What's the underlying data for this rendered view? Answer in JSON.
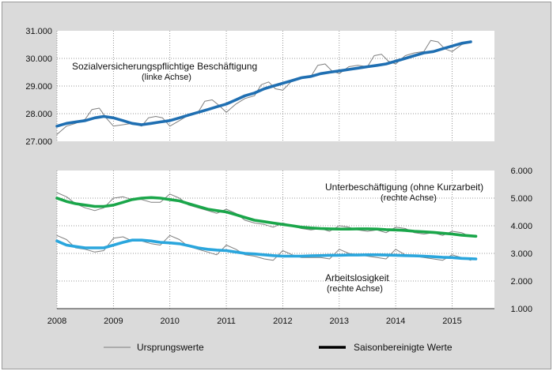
{
  "colors": {
    "background": "#dadada",
    "plot": "#ffffff",
    "grid": "#7a7a7a",
    "raw": "#7f7f7f",
    "employment": "#1f6fb2",
    "underemployment": "#1aa64a",
    "unemployment": "#2aa6dd"
  },
  "chart_data": [
    {
      "type": "line",
      "panel": "top",
      "y_axis": "left",
      "ylim": [
        27000,
        31000
      ],
      "yticks": [
        "27.000",
        "28.000",
        "29.000",
        "30.000",
        "31.000"
      ],
      "xlim": [
        2008,
        2015.75
      ],
      "x_ticks": [
        "2008",
        "2009",
        "2010",
        "2011",
        "2012",
        "2013",
        "2014",
        "2015"
      ],
      "annotation": {
        "title": "Sozialversicherungspflichtige Beschäftigung",
        "sub": "(linke Achse)"
      },
      "series": [
        {
          "name": "Ursprungswerte",
          "style": "raw",
          "x": [
            2008.0,
            2008.17,
            2008.33,
            2008.5,
            2008.62,
            2008.75,
            2008.87,
            2009.0,
            2009.17,
            2009.33,
            2009.5,
            2009.62,
            2009.75,
            2009.87,
            2010.0,
            2010.17,
            2010.33,
            2010.5,
            2010.62,
            2010.75,
            2010.87,
            2011.0,
            2011.17,
            2011.33,
            2011.5,
            2011.62,
            2011.75,
            2011.87,
            2012.0,
            2012.17,
            2012.33,
            2012.5,
            2012.62,
            2012.75,
            2012.87,
            2013.0,
            2013.17,
            2013.33,
            2013.5,
            2013.62,
            2013.75,
            2013.87,
            2014.0,
            2014.17,
            2014.33,
            2014.5,
            2014.62,
            2014.75,
            2014.87,
            2015.0,
            2015.17,
            2015.33
          ],
          "values": [
            27250,
            27550,
            27650,
            27800,
            28150,
            28200,
            27850,
            27550,
            27600,
            27650,
            27550,
            27850,
            27900,
            27850,
            27550,
            27750,
            27950,
            28050,
            28450,
            28500,
            28300,
            28050,
            28350,
            28550,
            28650,
            29050,
            29150,
            28900,
            28850,
            29200,
            29300,
            29350,
            29750,
            29800,
            29550,
            29450,
            29700,
            29750,
            29700,
            30100,
            30150,
            29900,
            29800,
            30100,
            30200,
            30250,
            30650,
            30600,
            30350,
            30250,
            30500,
            30600
          ]
        },
        {
          "name": "Saisonbereinigte Werte",
          "style": "sa",
          "color_key": "employment",
          "x": [
            2008.0,
            2008.17,
            2008.33,
            2008.5,
            2008.67,
            2008.83,
            2009.0,
            2009.17,
            2009.33,
            2009.5,
            2009.67,
            2009.83,
            2010.0,
            2010.17,
            2010.33,
            2010.5,
            2010.67,
            2010.83,
            2011.0,
            2011.17,
            2011.33,
            2011.5,
            2011.67,
            2011.83,
            2012.0,
            2012.17,
            2012.33,
            2012.5,
            2012.67,
            2012.83,
            2013.0,
            2013.17,
            2013.33,
            2013.5,
            2013.67,
            2013.83,
            2014.0,
            2014.17,
            2014.33,
            2014.5,
            2014.67,
            2014.83,
            2015.0,
            2015.17,
            2015.33
          ],
          "values": [
            27550,
            27650,
            27700,
            27750,
            27850,
            27900,
            27850,
            27750,
            27650,
            27600,
            27650,
            27700,
            27750,
            27850,
            27950,
            28050,
            28150,
            28250,
            28350,
            28500,
            28650,
            28750,
            28900,
            29000,
            29100,
            29200,
            29300,
            29350,
            29450,
            29500,
            29550,
            29600,
            29650,
            29700,
            29750,
            29800,
            29900,
            30000,
            30100,
            30200,
            30250,
            30350,
            30450,
            30550,
            30600
          ]
        }
      ]
    },
    {
      "type": "line",
      "panel": "bottom",
      "y_axis": "right",
      "ylim": [
        1000,
        6000
      ],
      "yticks": [
        "1.000",
        "2.000",
        "3.000",
        "4.000",
        "5.000",
        "6.000"
      ],
      "xlim": [
        2008,
        2015.75
      ],
      "x_ticks": [
        "2008",
        "2009",
        "2010",
        "2011",
        "2012",
        "2013",
        "2014",
        "2015"
      ],
      "annotations": [
        {
          "title": "Unterbeschäftigung (ohne Kurzarbeit)",
          "sub": "(rechte Achse)"
        },
        {
          "title": "Arbeitslosigkeit",
          "sub": "(rechte Achse)"
        }
      ],
      "series": [
        {
          "name": "Ursprungswerte",
          "style": "raw",
          "x": [
            2008.0,
            2008.17,
            2008.33,
            2008.5,
            2008.67,
            2008.83,
            2009.0,
            2009.17,
            2009.33,
            2009.5,
            2009.67,
            2009.83,
            2010.0,
            2010.17,
            2010.33,
            2010.5,
            2010.67,
            2010.83,
            2011.0,
            2011.17,
            2011.33,
            2011.5,
            2011.67,
            2011.83,
            2012.0,
            2012.17,
            2012.33,
            2012.5,
            2012.67,
            2012.83,
            2013.0,
            2013.17,
            2013.33,
            2013.5,
            2013.67,
            2013.83,
            2014.0,
            2014.17,
            2014.33,
            2014.5,
            2014.67,
            2014.83,
            2015.0,
            2015.17,
            2015.33
          ],
          "values": [
            5200,
            5050,
            4800,
            4650,
            4550,
            4650,
            5000,
            5050,
            4950,
            4950,
            4850,
            4850,
            5150,
            5000,
            4750,
            4650,
            4550,
            4450,
            4600,
            4450,
            4200,
            4100,
            4050,
            3950,
            4100,
            4000,
            3900,
            3850,
            3900,
            3800,
            4000,
            3950,
            3850,
            3800,
            3850,
            3750,
            3950,
            3900,
            3750,
            3700,
            3750,
            3650,
            3800,
            3750,
            3600
          ]
        },
        {
          "name": "Saisonbereinigte Werte",
          "style": "sa",
          "color_key": "underemployment",
          "x": [
            2008.0,
            2008.17,
            2008.33,
            2008.5,
            2008.67,
            2008.83,
            2009.0,
            2009.17,
            2009.33,
            2009.5,
            2009.67,
            2009.83,
            2010.0,
            2010.17,
            2010.33,
            2010.5,
            2010.67,
            2010.83,
            2011.0,
            2011.17,
            2011.33,
            2011.5,
            2011.67,
            2011.83,
            2012.0,
            2012.17,
            2012.33,
            2012.5,
            2012.67,
            2012.83,
            2013.0,
            2013.17,
            2013.33,
            2013.5,
            2013.67,
            2013.83,
            2014.0,
            2014.17,
            2014.33,
            2014.5,
            2014.67,
            2014.83,
            2015.0,
            2015.17,
            2015.42
          ],
          "values": [
            5000,
            4880,
            4800,
            4750,
            4700,
            4700,
            4750,
            4850,
            4950,
            5000,
            5020,
            5000,
            4950,
            4900,
            4800,
            4700,
            4600,
            4550,
            4500,
            4400,
            4300,
            4200,
            4150,
            4100,
            4050,
            4000,
            3950,
            3920,
            3900,
            3890,
            3880,
            3880,
            3890,
            3890,
            3880,
            3860,
            3850,
            3830,
            3800,
            3780,
            3760,
            3730,
            3700,
            3660,
            3620
          ]
        },
        {
          "name": "Ursprungswerte",
          "style": "raw",
          "x": [
            2008.0,
            2008.17,
            2008.33,
            2008.5,
            2008.67,
            2008.83,
            2009.0,
            2009.17,
            2009.33,
            2009.5,
            2009.67,
            2009.83,
            2010.0,
            2010.17,
            2010.33,
            2010.5,
            2010.67,
            2010.83,
            2011.0,
            2011.17,
            2011.33,
            2011.5,
            2011.67,
            2011.83,
            2012.0,
            2012.17,
            2012.33,
            2012.5,
            2012.67,
            2012.83,
            2013.0,
            2013.17,
            2013.33,
            2013.5,
            2013.67,
            2013.83,
            2014.0,
            2014.17,
            2014.33,
            2014.5,
            2014.67,
            2014.83,
            2015.0,
            2015.17,
            2015.33
          ],
          "values": [
            3650,
            3500,
            3200,
            3150,
            3050,
            3100,
            3550,
            3600,
            3450,
            3450,
            3350,
            3300,
            3650,
            3500,
            3250,
            3150,
            3050,
            2950,
            3300,
            3150,
            2950,
            2900,
            2800,
            2750,
            3100,
            2950,
            2850,
            2850,
            2850,
            2800,
            3150,
            3000,
            2950,
            2900,
            2850,
            2800,
            3150,
            2950,
            2900,
            2850,
            2800,
            2750,
            2950,
            2850,
            2750
          ]
        },
        {
          "name": "Saisonbereinigte Werte",
          "style": "sa",
          "color_key": "unemployment",
          "x": [
            2008.0,
            2008.17,
            2008.33,
            2008.5,
            2008.67,
            2008.83,
            2009.0,
            2009.17,
            2009.33,
            2009.5,
            2009.67,
            2009.83,
            2010.0,
            2010.17,
            2010.33,
            2010.5,
            2010.67,
            2010.83,
            2011.0,
            2011.17,
            2011.33,
            2011.5,
            2011.67,
            2011.83,
            2012.0,
            2012.17,
            2012.33,
            2012.5,
            2012.67,
            2012.83,
            2013.0,
            2013.17,
            2013.33,
            2013.5,
            2013.67,
            2013.83,
            2014.0,
            2014.17,
            2014.33,
            2014.5,
            2014.67,
            2014.83,
            2015.0,
            2015.17,
            2015.42
          ],
          "values": [
            3450,
            3300,
            3250,
            3200,
            3200,
            3200,
            3300,
            3400,
            3480,
            3480,
            3450,
            3400,
            3380,
            3350,
            3280,
            3200,
            3150,
            3120,
            3100,
            3050,
            3000,
            2980,
            2950,
            2920,
            2900,
            2900,
            2900,
            2910,
            2920,
            2930,
            2930,
            2940,
            2940,
            2950,
            2950,
            2940,
            2930,
            2920,
            2910,
            2900,
            2880,
            2860,
            2850,
            2820,
            2800
          ]
        }
      ]
    }
  ],
  "legend": {
    "raw_label": "Ursprungswerte",
    "sa_label": "Saisonbereinigte Werte"
  }
}
